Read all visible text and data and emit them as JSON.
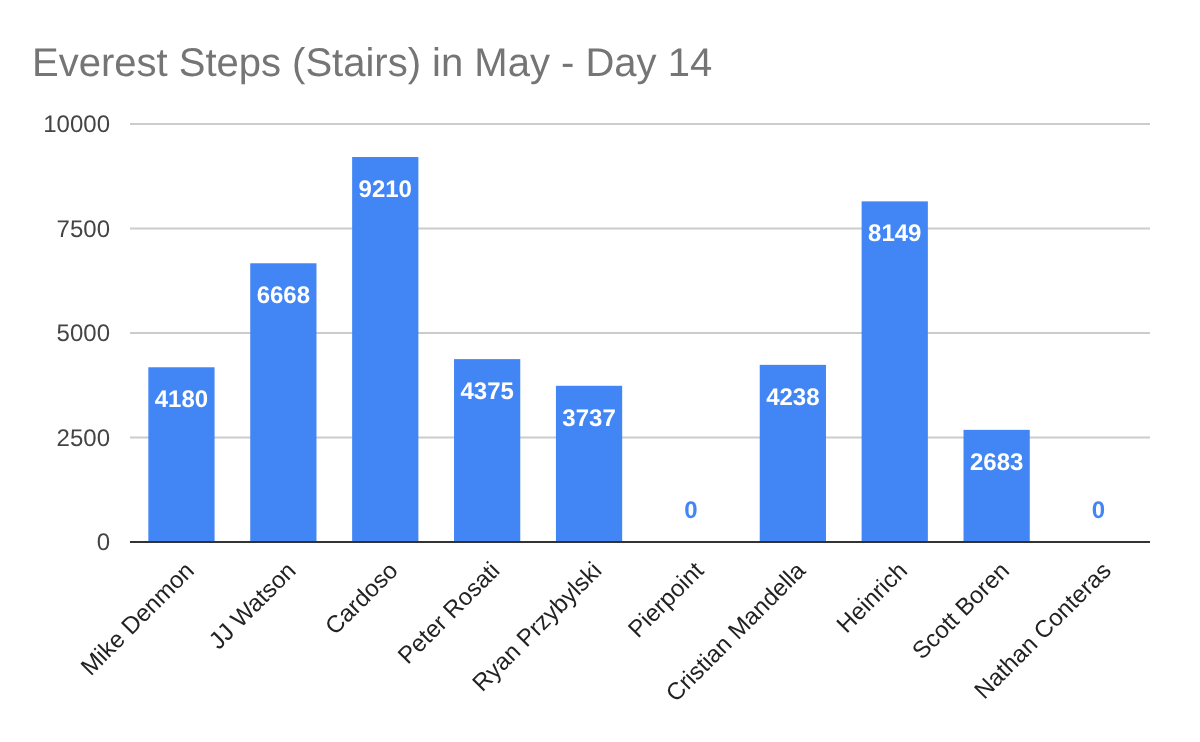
{
  "chart_data": {
    "type": "bar",
    "title": "Everest Steps (Stairs) in May - Day 14",
    "categories": [
      "Mike Denmon",
      "JJ Watson",
      "Cardoso",
      "Peter Rosati",
      "Ryan Przybylski",
      "Pierpoint",
      "Cristian Mandella",
      "Heinrich",
      "Scott Boren",
      "Nathan Conteras"
    ],
    "values": [
      4180,
      6668,
      9210,
      4375,
      3737,
      0,
      4238,
      8149,
      2683,
      0
    ],
    "color": "#4285f4",
    "ylim": [
      0,
      10000
    ],
    "yticks": [
      0,
      2500,
      5000,
      7500,
      10000
    ],
    "grid": "y",
    "data_labels": true
  }
}
